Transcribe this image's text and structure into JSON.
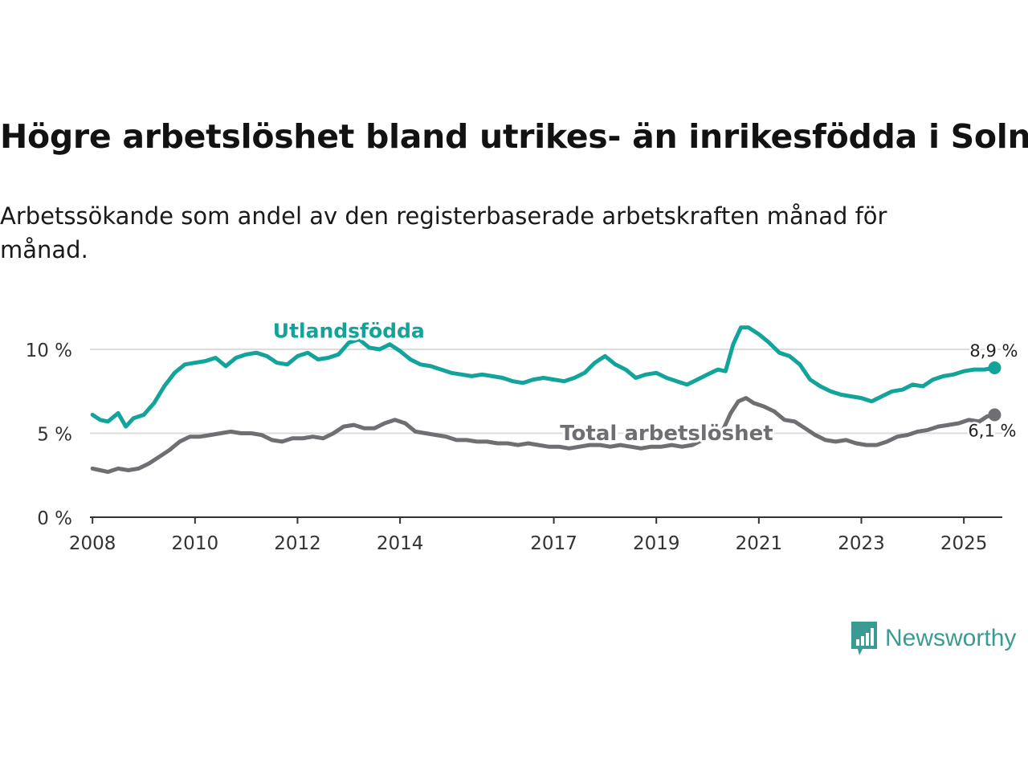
{
  "title": "Högre arbetslöshet bland utrikes- än inrikesfödda i Solna",
  "subtitle": "Arbetssökande som andel av den registerbaserade arbetskraften månad för månad.",
  "brand": {
    "name": "Newsworthy",
    "icon": "newsworthy-logo-icon",
    "color": "#3a9a94"
  },
  "chart_data": {
    "type": "line",
    "title": "Högre arbetslöshet bland utrikes- än inrikesfödda i Solna",
    "xlabel": "",
    "ylabel": "",
    "xlim": [
      2007.95,
      2025.75
    ],
    "ylim": [
      0,
      10
    ],
    "yticks": [
      0,
      5,
      10
    ],
    "ytick_labels": [
      "0 %",
      "5 %",
      "10 %"
    ],
    "xticks": [
      2008,
      2010,
      2012,
      2014,
      2017,
      2019,
      2021,
      2023,
      2025
    ],
    "xtick_labels": [
      "2008",
      "2010",
      "2012",
      "2014",
      "2017",
      "2019",
      "2021",
      "2023",
      "2025"
    ],
    "grid": true,
    "series": [
      {
        "name": "Utlandsfödda",
        "color": "#12a39a",
        "end_label": "8,9 %",
        "points": [
          [
            2008.0,
            6.1
          ],
          [
            2008.15,
            5.8
          ],
          [
            2008.3,
            5.7
          ],
          [
            2008.5,
            6.2
          ],
          [
            2008.65,
            5.4
          ],
          [
            2008.8,
            5.9
          ],
          [
            2009.0,
            6.1
          ],
          [
            2009.2,
            6.8
          ],
          [
            2009.4,
            7.8
          ],
          [
            2009.6,
            8.6
          ],
          [
            2009.8,
            9.1
          ],
          [
            2010.0,
            9.2
          ],
          [
            2010.2,
            9.3
          ],
          [
            2010.4,
            9.5
          ],
          [
            2010.6,
            9.0
          ],
          [
            2010.8,
            9.5
          ],
          [
            2011.0,
            9.7
          ],
          [
            2011.2,
            9.8
          ],
          [
            2011.4,
            9.6
          ],
          [
            2011.6,
            9.2
          ],
          [
            2011.8,
            9.1
          ],
          [
            2012.0,
            9.6
          ],
          [
            2012.2,
            9.8
          ],
          [
            2012.4,
            9.4
          ],
          [
            2012.6,
            9.5
          ],
          [
            2012.8,
            9.7
          ],
          [
            2013.0,
            10.4
          ],
          [
            2013.2,
            10.6
          ],
          [
            2013.4,
            10.1
          ],
          [
            2013.6,
            10.0
          ],
          [
            2013.8,
            10.3
          ],
          [
            2014.0,
            9.9
          ],
          [
            2014.2,
            9.4
          ],
          [
            2014.4,
            9.1
          ],
          [
            2014.6,
            9.0
          ],
          [
            2014.8,
            8.8
          ],
          [
            2015.0,
            8.6
          ],
          [
            2015.2,
            8.5
          ],
          [
            2015.4,
            8.4
          ],
          [
            2015.6,
            8.5
          ],
          [
            2015.8,
            8.4
          ],
          [
            2016.0,
            8.3
          ],
          [
            2016.2,
            8.1
          ],
          [
            2016.4,
            8.0
          ],
          [
            2016.6,
            8.2
          ],
          [
            2016.8,
            8.3
          ],
          [
            2017.0,
            8.2
          ],
          [
            2017.2,
            8.1
          ],
          [
            2017.4,
            8.3
          ],
          [
            2017.6,
            8.6
          ],
          [
            2017.8,
            9.2
          ],
          [
            2018.0,
            9.6
          ],
          [
            2018.2,
            9.1
          ],
          [
            2018.4,
            8.8
          ],
          [
            2018.6,
            8.3
          ],
          [
            2018.8,
            8.5
          ],
          [
            2019.0,
            8.6
          ],
          [
            2019.2,
            8.3
          ],
          [
            2019.4,
            8.1
          ],
          [
            2019.6,
            7.9
          ],
          [
            2019.8,
            8.2
          ],
          [
            2020.0,
            8.5
          ],
          [
            2020.2,
            8.8
          ],
          [
            2020.35,
            8.7
          ],
          [
            2020.5,
            10.3
          ],
          [
            2020.65,
            11.3
          ],
          [
            2020.8,
            11.3
          ],
          [
            2021.0,
            10.9
          ],
          [
            2021.2,
            10.4
          ],
          [
            2021.4,
            9.8
          ],
          [
            2021.6,
            9.6
          ],
          [
            2021.8,
            9.1
          ],
          [
            2022.0,
            8.2
          ],
          [
            2022.2,
            7.8
          ],
          [
            2022.4,
            7.5
          ],
          [
            2022.6,
            7.3
          ],
          [
            2022.8,
            7.2
          ],
          [
            2023.0,
            7.1
          ],
          [
            2023.2,
            6.9
          ],
          [
            2023.4,
            7.2
          ],
          [
            2023.6,
            7.5
          ],
          [
            2023.8,
            7.6
          ],
          [
            2024.0,
            7.9
          ],
          [
            2024.2,
            7.8
          ],
          [
            2024.4,
            8.2
          ],
          [
            2024.6,
            8.4
          ],
          [
            2024.8,
            8.5
          ],
          [
            2025.0,
            8.7
          ],
          [
            2025.2,
            8.8
          ],
          [
            2025.4,
            8.8
          ],
          [
            2025.6,
            8.9
          ]
        ]
      },
      {
        "name": "Total arbetslöshet",
        "color": "#6e6e73",
        "end_label": "6,1 %",
        "points": [
          [
            2008.0,
            2.9
          ],
          [
            2008.15,
            2.8
          ],
          [
            2008.3,
            2.7
          ],
          [
            2008.5,
            2.9
          ],
          [
            2008.7,
            2.8
          ],
          [
            2008.9,
            2.9
          ],
          [
            2009.1,
            3.2
          ],
          [
            2009.3,
            3.6
          ],
          [
            2009.5,
            4.0
          ],
          [
            2009.7,
            4.5
          ],
          [
            2009.9,
            4.8
          ],
          [
            2010.1,
            4.8
          ],
          [
            2010.3,
            4.9
          ],
          [
            2010.5,
            5.0
          ],
          [
            2010.7,
            5.1
          ],
          [
            2010.9,
            5.0
          ],
          [
            2011.1,
            5.0
          ],
          [
            2011.3,
            4.9
          ],
          [
            2011.5,
            4.6
          ],
          [
            2011.7,
            4.5
          ],
          [
            2011.9,
            4.7
          ],
          [
            2012.1,
            4.7
          ],
          [
            2012.3,
            4.8
          ],
          [
            2012.5,
            4.7
          ],
          [
            2012.7,
            5.0
          ],
          [
            2012.9,
            5.4
          ],
          [
            2013.1,
            5.5
          ],
          [
            2013.3,
            5.3
          ],
          [
            2013.5,
            5.3
          ],
          [
            2013.7,
            5.6
          ],
          [
            2013.9,
            5.8
          ],
          [
            2014.1,
            5.6
          ],
          [
            2014.3,
            5.1
          ],
          [
            2014.5,
            5.0
          ],
          [
            2014.7,
            4.9
          ],
          [
            2014.9,
            4.8
          ],
          [
            2015.1,
            4.6
          ],
          [
            2015.3,
            4.6
          ],
          [
            2015.5,
            4.5
          ],
          [
            2015.7,
            4.5
          ],
          [
            2015.9,
            4.4
          ],
          [
            2016.1,
            4.4
          ],
          [
            2016.3,
            4.3
          ],
          [
            2016.5,
            4.4
          ],
          [
            2016.7,
            4.3
          ],
          [
            2016.9,
            4.2
          ],
          [
            2017.1,
            4.2
          ],
          [
            2017.3,
            4.1
          ],
          [
            2017.5,
            4.2
          ],
          [
            2017.7,
            4.3
          ],
          [
            2017.9,
            4.3
          ],
          [
            2018.1,
            4.2
          ],
          [
            2018.3,
            4.3
          ],
          [
            2018.5,
            4.2
          ],
          [
            2018.7,
            4.1
          ],
          [
            2018.9,
            4.2
          ],
          [
            2019.1,
            4.2
          ],
          [
            2019.3,
            4.3
          ],
          [
            2019.5,
            4.2
          ],
          [
            2019.7,
            4.3
          ],
          [
            2019.9,
            4.6
          ],
          [
            2020.1,
            4.9
          ],
          [
            2020.3,
            5.2
          ],
          [
            2020.45,
            6.2
          ],
          [
            2020.6,
            6.9
          ],
          [
            2020.75,
            7.1
          ],
          [
            2020.9,
            6.8
          ],
          [
            2021.1,
            6.6
          ],
          [
            2021.3,
            6.3
          ],
          [
            2021.5,
            5.8
          ],
          [
            2021.7,
            5.7
          ],
          [
            2021.9,
            5.3
          ],
          [
            2022.1,
            4.9
          ],
          [
            2022.3,
            4.6
          ],
          [
            2022.5,
            4.5
          ],
          [
            2022.7,
            4.6
          ],
          [
            2022.9,
            4.4
          ],
          [
            2023.1,
            4.3
          ],
          [
            2023.3,
            4.3
          ],
          [
            2023.5,
            4.5
          ],
          [
            2023.7,
            4.8
          ],
          [
            2023.9,
            4.9
          ],
          [
            2024.1,
            5.1
          ],
          [
            2024.3,
            5.2
          ],
          [
            2024.5,
            5.4
          ],
          [
            2024.7,
            5.5
          ],
          [
            2024.9,
            5.6
          ],
          [
            2025.1,
            5.8
          ],
          [
            2025.3,
            5.7
          ],
          [
            2025.45,
            6.0
          ],
          [
            2025.6,
            6.1
          ]
        ]
      }
    ],
    "annotations": [
      {
        "text": "Utlandsfödda",
        "series": 0
      },
      {
        "text": "Total arbetslöshet",
        "series": 1
      }
    ]
  }
}
